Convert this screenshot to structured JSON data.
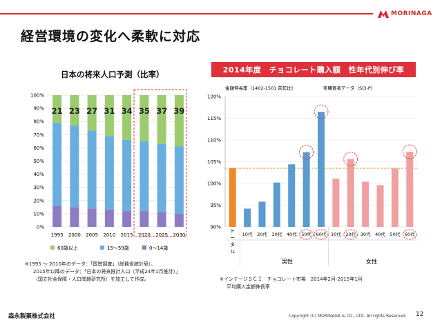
{
  "header": {
    "title": "経営環境の変化へ柔軟に対応",
    "logo_text": "MORINAGA",
    "brand_color": "#d42b2b"
  },
  "left_chart_title": "日本の将来人口予測（比率）",
  "right_banner": "2014年度　チョコレート購入額　性年代別伸び率",
  "right_subnotes": {
    "metric": "金額伸長率（1402-1501 前年比）",
    "source": "実購買者データ（SCI-P）"
  },
  "chart_data": [
    {
      "type": "bar",
      "stacked": true,
      "title": "日本の将来人口予測（比率）",
      "categories": [
        "1995",
        "2000",
        "2005",
        "2010",
        "2015",
        "2020",
        "2025",
        "2030"
      ],
      "series": [
        {
          "name": "0～14歳",
          "color": "#8e7cc3",
          "values": [
            16,
            15,
            14,
            13,
            12,
            12,
            11,
            10
          ]
        },
        {
          "name": "15～59歳",
          "color": "#6aaee0",
          "values": [
            63,
            62,
            59,
            56,
            54,
            53,
            52,
            51
          ]
        },
        {
          "name": "60歳以上",
          "color": "#9ccb70",
          "values": [
            21,
            23,
            27,
            31,
            34,
            35,
            37,
            39
          ]
        }
      ],
      "top_labels": [
        "21",
        "23",
        "27",
        "31",
        "34",
        "35",
        "37",
        "39"
      ],
      "yticks": [
        "0%",
        "10%",
        "20%",
        "30%",
        "40%",
        "50%",
        "60%",
        "70%",
        "80%",
        "90%",
        "100%"
      ],
      "ylim": [
        0,
        100
      ],
      "highlight_categories": [
        "2020",
        "2025",
        "2030"
      ]
    },
    {
      "type": "bar",
      "title": "2014年度　チョコレート購入額　性年代別伸び率",
      "categories": [
        "トータル",
        "10代",
        "20代",
        "30代",
        "40代",
        "50代",
        "60代",
        "10代",
        "20代",
        "30代",
        "40代",
        "50代",
        "60代"
      ],
      "values": [
        103.5,
        94.2,
        95.8,
        100.2,
        104.4,
        107.2,
        116.5,
        101.1,
        105.6,
        100.4,
        99.6,
        103.4,
        107.3
      ],
      "groups": [
        {
          "label": "男性",
          "start": 1,
          "end": 6
        },
        {
          "label": "女性",
          "start": 7,
          "end": 12
        }
      ],
      "colors": {
        "total": "#f08a24",
        "male": "#5b9bd0",
        "female": "#f0a0a0"
      },
      "yticks": [
        "90%",
        "95%",
        "100%",
        "105%",
        "110%",
        "115%",
        "120%"
      ],
      "ylim": [
        90,
        120
      ],
      "reference_line": 103.5,
      "circled_bars": [
        5,
        6,
        8,
        12
      ]
    }
  ],
  "legend": {
    "older": "60歳以上",
    "middle": "15～59歳",
    "young": "0～14歳"
  },
  "x_group_labels": {
    "male": "男性",
    "female": "女性"
  },
  "footnote_left": {
    "line1": "※1995 ～ 2010年のデータ：「国勢調査」（総務省統計局）、",
    "line2": "2015年以降のデータ：「日本の将来推計人口（平成24年1月推計）」",
    "line3": "（国立社会保障・人口問題研究所）を加工して作成。"
  },
  "footnote_right": {
    "line1": "※インテージＳＣＩ　チョコレート市場　2014年2月-2015年1月",
    "line2": "平均購入金額伸長率"
  },
  "footer": {
    "company": "森永製菓株式会社",
    "copyright": "Copyright (C) MORINAGA & CO., LTD. All rights Reserved.",
    "page": "12"
  }
}
